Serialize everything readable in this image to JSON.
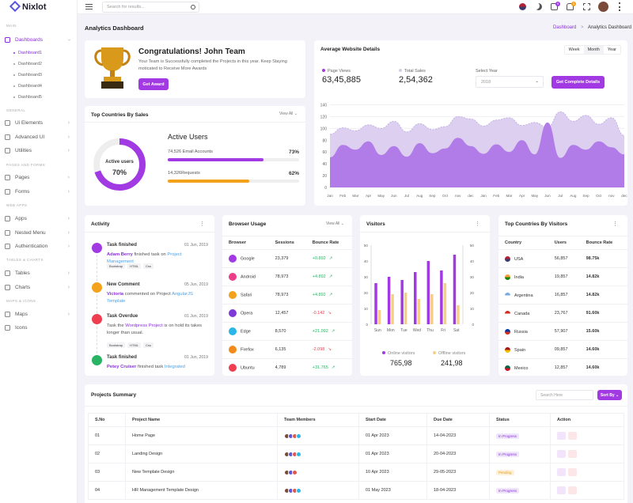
{
  "app": {
    "name": "Nixlot"
  },
  "search": {
    "placeholder": "Search for results..."
  },
  "notifications": {
    "badge_a": "9",
    "badge_b": "3"
  },
  "sidebar": {
    "main_label": "MAIN",
    "dashboards": "Dashboards",
    "subs": [
      "Dashboard1",
      "Dashboard2",
      "Dashboard3",
      "Dashboard4",
      "Dashboard5"
    ],
    "general_label": "GENERAL",
    "general": [
      "Ui Elements",
      "Advanced UI",
      "Utilities"
    ],
    "pages_label": "PAGES AND FORMS",
    "pages": [
      "Pages",
      "Forms"
    ],
    "web_label": "WEB APPS",
    "web": [
      "Apps",
      "Nested Menu",
      "Authentication"
    ],
    "tables_label": "TABLES & CHARTS",
    "tables": [
      "Tables",
      "Charts"
    ],
    "maps_label": "MAPS & ICONS",
    "maps": [
      "Maps",
      "Icons"
    ]
  },
  "header": {
    "title": "Analytics Dashboard",
    "crumb_root": "Dashboard",
    "crumb_sep": ">",
    "crumb_current": "Analytics Dashboard"
  },
  "congrats": {
    "title": "Congratulations! John Team",
    "text": "Your Team is Successfully completed the Projects in this year. Keep Staying moticated to Receive More Awards",
    "button": "Get Award"
  },
  "website": {
    "title": "Average Website Details",
    "tabs": [
      "Week",
      "Month",
      "Year"
    ],
    "pv_label": "Page Views",
    "pv_value": "63,45,885",
    "ts_label": "Total Sales",
    "ts_value": "2,54,362",
    "sel_label": "Select Year",
    "sel_value": "2018",
    "button": "Get Complete Details"
  },
  "countries_sales": {
    "title": "Top Countries By Sales",
    "view_all": "View All",
    "donut_label": "Active users",
    "donut_value": "70%",
    "active_title": "Active Users",
    "email_label": "74,526 Email Accounts",
    "email_pct": "73%",
    "email_frac": 0.73,
    "req_label": "14,326Requests",
    "req_pct": "62%",
    "req_frac": 0.62
  },
  "chart_data": [
    {
      "type": "area",
      "title": "",
      "y_ticks": [
        "140",
        "120",
        "100",
        "80",
        "60",
        "40",
        "20",
        "0"
      ],
      "ylim": [
        0,
        150
      ],
      "x": [
        "Jan",
        "Feb",
        "Mar",
        "Apr",
        "May",
        "Jun",
        "Jul",
        "Aug",
        "Sep",
        "Oct",
        "nov",
        "dec",
        "Jan",
        "Feb",
        "Mar",
        "Apr",
        "May",
        "Jun",
        "Jul",
        "Aug",
        "Sep",
        "Oct",
        "nov",
        "dec"
      ],
      "series": [
        {
          "values": [
            90,
            101,
            96,
            106,
            100,
            112,
            94,
            108,
            98,
            103,
            120,
            116,
            104,
            114,
            118,
            105,
            110,
            102,
            128,
            112,
            122,
            107,
            118,
            88
          ]
        },
        {
          "values": [
            51,
            72,
            64,
            78,
            55,
            70,
            52,
            75,
            58,
            66,
            84,
            70,
            57,
            73,
            60,
            80,
            56,
            110,
            50,
            72,
            64,
            78,
            68,
            56
          ]
        }
      ]
    },
    {
      "type": "bar",
      "title": "",
      "categories": [
        "Sun",
        "Mon",
        "Tue",
        "Wed",
        "Thu",
        "Fri",
        "Sat"
      ],
      "ylim": [
        0,
        50
      ],
      "y_ticks": [
        "50",
        "40",
        "30",
        "20",
        "10",
        "0"
      ],
      "series": [
        {
          "name": "Online visitors",
          "values": [
            26,
            30,
            28,
            33,
            40,
            34,
            44
          ]
        },
        {
          "name": "Offline visitors",
          "values": [
            9,
            19,
            20,
            16,
            19,
            26,
            12
          ]
        }
      ]
    }
  ],
  "visitors": {
    "title": "Visitors",
    "online_label": "Online visitors",
    "online_value": "765,98",
    "offline_label": "Offline visitors",
    "offline_value": "241,98"
  },
  "activity": {
    "title": "Activity",
    "items": [
      {
        "title": "Task finished",
        "date": "01 Jun, 2019",
        "t1": "Adam Berry",
        "t2": " finished task on ",
        "t3": "Project Management",
        "tags": [
          "Bootstrap",
          "HTML",
          "Css"
        ]
      },
      {
        "title": "New Comment",
        "date": "05 Jun, 2019",
        "t1": "Victoria",
        "t2": " commented on Project ",
        "t3": "AngularJS Template",
        "tags": []
      },
      {
        "title": "Task Overdue",
        "date": "01 Jun, 2019",
        "t1": "Task the ",
        "t2": "Wordpress Project",
        "t3": " is on hold its takes longer than usual.",
        "tags": [
          "Bootstrap",
          "HTML",
          "Css"
        ]
      },
      {
        "title": "Task finished",
        "date": "01 Jun, 2019",
        "t1": "Petey Cruiser",
        "t2": " finished task ",
        "t3": "Integrated",
        "tags": []
      }
    ]
  },
  "browser": {
    "title": "Browser Usage",
    "view_all": "View All",
    "cols": [
      "Browser",
      "Sessions",
      "Bounce Rate"
    ],
    "rows": [
      {
        "name": "Google",
        "sessions": "23,379",
        "rate": "+0.892",
        "up": true,
        "color": "#a23ae3"
      },
      {
        "name": "Android",
        "sessions": "78,973",
        "rate": "+4.892",
        "up": true,
        "color": "#ec3d8b"
      },
      {
        "name": "Safari",
        "sessions": "78,973",
        "rate": "+4.892",
        "up": true,
        "color": "#f3a21c"
      },
      {
        "name": "Opera",
        "sessions": "12,457",
        "rate": "-0.142",
        "up": false,
        "color": "#7e3ad8"
      },
      {
        "name": "Edge",
        "sessions": "8,570",
        "rate": "+21.092",
        "up": true,
        "color": "#28b7e6"
      },
      {
        "name": "Firefox",
        "sessions": "6,135",
        "rate": "-2.098",
        "up": false,
        "color": "#f38b1c"
      },
      {
        "name": "Ubuntu",
        "sessions": "4,789",
        "rate": "+31.765",
        "up": true,
        "color": "#ee3e4f"
      }
    ]
  },
  "visitors_country": {
    "title": "Top Countries By Visitors",
    "cols": [
      "Country",
      "Users",
      "Bounce Rate"
    ],
    "rows": [
      {
        "name": "USA",
        "users": "56,857",
        "rate": "98.75k",
        "c1": "#b22234",
        "c2": "#3c3b6e"
      },
      {
        "name": "India",
        "users": "19,857",
        "rate": "14.82k",
        "c1": "#ff9933",
        "c2": "#138808"
      },
      {
        "name": "Argentina",
        "users": "16,857",
        "rate": "14.82k",
        "c1": "#74acdf",
        "c2": "#ffffff"
      },
      {
        "name": "Canada",
        "users": "23,767",
        "rate": "91.60k",
        "c1": "#d52b1e",
        "c2": "#ffffff"
      },
      {
        "name": "Russia",
        "users": "57,907",
        "rate": "15.60k",
        "c1": "#0039a6",
        "c2": "#d52b1e"
      },
      {
        "name": "Spain",
        "users": "09,857",
        "rate": "14.60k",
        "c1": "#aa151b",
        "c2": "#f1bf00"
      },
      {
        "name": "Mexico",
        "users": "12,857",
        "rate": "14.60k",
        "c1": "#006847",
        "c2": "#ce1126"
      }
    ]
  },
  "projects": {
    "title": "Projects Summary",
    "search_placeholder": "Search Here",
    "sort": "Sort By",
    "cols": [
      "S.No",
      "Project Name",
      "Team Members",
      "Start Date",
      "Due Date",
      "Status",
      "Action"
    ],
    "rows": [
      {
        "no": "01",
        "name": "Home Page",
        "start": "01 Apr 2023",
        "due": "14-04-2023",
        "status": "In Progress",
        "st": "prog"
      },
      {
        "no": "02",
        "name": "Landing Design",
        "start": "01 Apr 2023",
        "due": "20-04-2023",
        "status": "In Progress",
        "st": "prog"
      },
      {
        "no": "03",
        "name": "New Template Design",
        "start": "10 Apr 2023",
        "due": "29-05-2023",
        "status": "Pending",
        "st": "pend"
      },
      {
        "no": "04",
        "name": "HR Management Template Design",
        "start": "01 May 2023",
        "due": "18-04-2023",
        "status": "In Progress",
        "st": "prog"
      }
    ]
  }
}
